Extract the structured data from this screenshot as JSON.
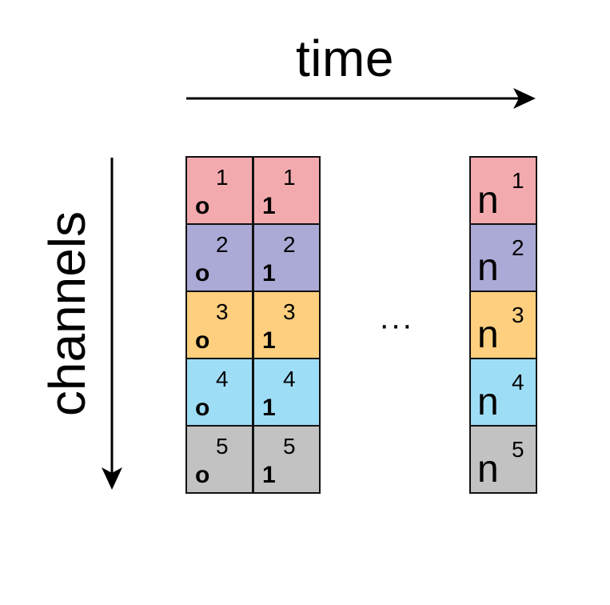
{
  "labels": {
    "time": "time",
    "channels": "channels",
    "ellipsis": "···"
  },
  "columns": [
    {
      "cells": [
        {
          "base": "o",
          "sup": "1",
          "color": "#F3AAAE"
        },
        {
          "base": "o",
          "sup": "2",
          "color": "#ABA9D6"
        },
        {
          "base": "o",
          "sup": "3",
          "color": "#FDCF7E"
        },
        {
          "base": "o",
          "sup": "4",
          "color": "#9EDDF6"
        },
        {
          "base": "o",
          "sup": "5",
          "color": "#C2C2C2"
        }
      ]
    },
    {
      "cells": [
        {
          "base": "1",
          "sup": "1",
          "color": "#F3AAAE"
        },
        {
          "base": "1",
          "sup": "2",
          "color": "#ABA9D6"
        },
        {
          "base": "1",
          "sup": "3",
          "color": "#FDCF7E"
        },
        {
          "base": "1",
          "sup": "4",
          "color": "#9EDDF6"
        },
        {
          "base": "1",
          "sup": "5",
          "color": "#C2C2C2"
        }
      ]
    },
    {
      "cells": [
        {
          "base": "n",
          "sup": "1",
          "color": "#F3AAAE"
        },
        {
          "base": "n",
          "sup": "2",
          "color": "#ABA9D6"
        },
        {
          "base": "n",
          "sup": "3",
          "color": "#FDCF7E"
        },
        {
          "base": "n",
          "sup": "4",
          "color": "#9EDDF6"
        },
        {
          "base": "n",
          "sup": "5",
          "color": "#C2C2C2"
        }
      ]
    }
  ]
}
